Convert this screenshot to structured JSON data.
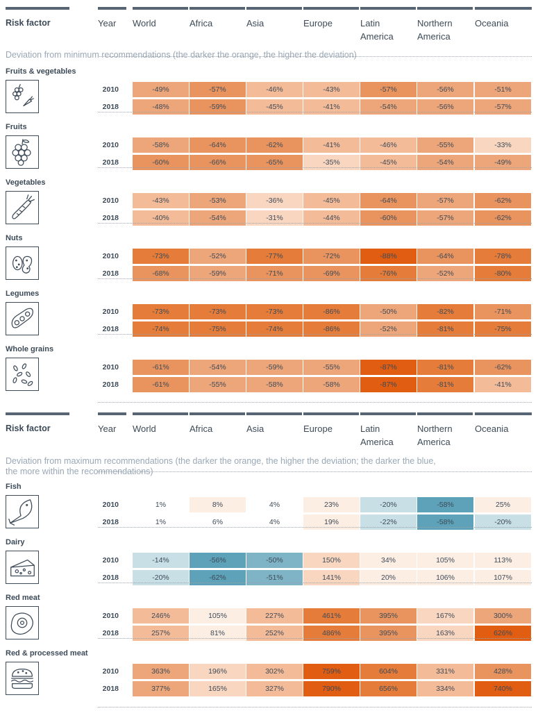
{
  "columns": [
    "World",
    "Africa",
    "Asia",
    "Europe",
    "Latin America",
    "Northern America",
    "Oceania"
  ],
  "headers": [
    {
      "risk_factor": "Risk factor",
      "year": "Year",
      "regions": [
        "World",
        "Africa",
        "Asia",
        "Europe",
        "Latin\nAmerica",
        "Northern\nAmerica",
        "Oceania"
      ]
    },
    {
      "risk_factor": "Risk factor",
      "year": "Year",
      "regions": [
        "World",
        "Africa",
        "Asia",
        "Europe",
        "Latin\nAmerica",
        "Northern\nAmerica",
        "Oceania"
      ]
    }
  ],
  "sections": [
    {
      "subtitle": "Deviation from minimum recommendations (the darker the orange, the higher the deviation)"
    },
    {
      "subtitle": "Deviation from maximum recommendations (the darker the orange, the higher the deviation; the darker the blue,\nthe more within the recommendations)"
    }
  ],
  "colors": {
    "o1": "#fdeee4",
    "o2": "#f9d6c0",
    "o3": "#f4bb98",
    "o4": "#eda57a",
    "o5": "#e9945f",
    "o6": "#e57c3a",
    "o7": "#e05d12",
    "b1": "#c8dfe6",
    "b2": "#7fb4c6",
    "b3": "#5da2b8",
    "text": "#3d4a57",
    "header_bar": "#566473"
  },
  "chart_data": {
    "type": "table",
    "years": [
      "2010",
      "2018"
    ],
    "groups": [
      {
        "section": 0,
        "label": "Fruits & vegetables",
        "icon": "fruits-vegetables-icon",
        "rows": [
          {
            "year": "2010",
            "values": [
              "-49%",
              "-57%",
              "-46%",
              "-43%",
              "-57%",
              "-56%",
              "-51%"
            ],
            "shades": [
              "o4",
              "o5",
              "o3",
              "o3",
              "o5",
              "o4",
              "o4"
            ]
          },
          {
            "year": "2018",
            "values": [
              "-48%",
              "-59%",
              "-45%",
              "-41%",
              "-54%",
              "-56%",
              "-57%"
            ],
            "shades": [
              "o4",
              "o5",
              "o3",
              "o3",
              "o4",
              "o4",
              "o4"
            ]
          }
        ]
      },
      {
        "section": 0,
        "label": "Fruits",
        "icon": "fruits-icon",
        "rows": [
          {
            "year": "2010",
            "values": [
              "-58%",
              "-64%",
              "-62%",
              "-41%",
              "-46%",
              "-55%",
              "-33%"
            ],
            "shades": [
              "o4",
              "o5",
              "o5",
              "o3",
              "o3",
              "o4",
              "o2"
            ]
          },
          {
            "year": "2018",
            "values": [
              "-60%",
              "-66%",
              "-65%",
              "-35%",
              "-45%",
              "-54%",
              "-49%"
            ],
            "shades": [
              "o5",
              "o5",
              "o5",
              "o2",
              "o3",
              "o4",
              "o4"
            ]
          }
        ]
      },
      {
        "section": 0,
        "label": "Vegetables",
        "icon": "carrot-icon",
        "rows": [
          {
            "year": "2010",
            "values": [
              "-43%",
              "-53%",
              "-36%",
              "-45%",
              "-64%",
              "-57%",
              "-62%"
            ],
            "shades": [
              "o3",
              "o4",
              "o2",
              "o3",
              "o5",
              "o4",
              "o5"
            ]
          },
          {
            "year": "2018",
            "values": [
              "-40%",
              "-54%",
              "-31%",
              "-44%",
              "-60%",
              "-57%",
              "-62%"
            ],
            "shades": [
              "o3",
              "o4",
              "o2",
              "o3",
              "o5",
              "o4",
              "o5"
            ]
          }
        ]
      },
      {
        "section": 0,
        "label": "Nuts",
        "icon": "nuts-icon",
        "rows": [
          {
            "year": "2010",
            "values": [
              "-73%",
              "-52%",
              "-77%",
              "-72%",
              "-88%",
              "-64%",
              "-78%"
            ],
            "shades": [
              "o6",
              "o4",
              "o6",
              "o5",
              "o7",
              "o5",
              "o6"
            ]
          },
          {
            "year": "2018",
            "values": [
              "-68%",
              "-59%",
              "-71%",
              "-69%",
              "-76%",
              "-52%",
              "-80%"
            ],
            "shades": [
              "o5",
              "o4",
              "o5",
              "o5",
              "o6",
              "o4",
              "o6"
            ]
          }
        ]
      },
      {
        "section": 0,
        "label": "Legumes",
        "icon": "legumes-icon",
        "rows": [
          {
            "year": "2010",
            "values": [
              "-73%",
              "-73%",
              "-73%",
              "-86%",
              "-50%",
              "-82%",
              "-71%"
            ],
            "shades": [
              "o6",
              "o6",
              "o6",
              "o6",
              "o4",
              "o6",
              "o5"
            ]
          },
          {
            "year": "2018",
            "values": [
              "-74%",
              "-75%",
              "-74%",
              "-86%",
              "-52%",
              "-81%",
              "-75%"
            ],
            "shades": [
              "o6",
              "o6",
              "o6",
              "o6",
              "o4",
              "o6",
              "o6"
            ]
          }
        ]
      },
      {
        "section": 0,
        "label": "Whole grains",
        "icon": "whole-grains-icon",
        "rows": [
          {
            "year": "2010",
            "values": [
              "-61%",
              "-54%",
              "-59%",
              "-55%",
              "-87%",
              "-81%",
              "-62%"
            ],
            "shades": [
              "o5",
              "o4",
              "o4",
              "o4",
              "o7",
              "o6",
              "o5"
            ]
          },
          {
            "year": "2018",
            "values": [
              "-61%",
              "-55%",
              "-58%",
              "-58%",
              "-87%",
              "-81%",
              "-41%"
            ],
            "shades": [
              "o5",
              "o4",
              "o4",
              "o4",
              "o7",
              "o6",
              "o3"
            ]
          }
        ]
      },
      {
        "section": 1,
        "label": "Fish",
        "icon": "fish-icon",
        "rows": [
          {
            "year": "2010",
            "values": [
              "1%",
              "8%",
              "4%",
              "23%",
              "-20%",
              "-58%",
              "25%"
            ],
            "shades": [
              "none",
              "o1",
              "none",
              "o1",
              "b1",
              "b3",
              "o1"
            ]
          },
          {
            "year": "2018",
            "values": [
              "1%",
              "6%",
              "4%",
              "19%",
              "-22%",
              "-58%",
              "-20%"
            ],
            "shades": [
              "none",
              "none",
              "none",
              "o1",
              "b1",
              "b3",
              "b1"
            ]
          }
        ]
      },
      {
        "section": 1,
        "label": "Dairy",
        "icon": "cheese-icon",
        "rows": [
          {
            "year": "2010",
            "values": [
              "-14%",
              "-56%",
              "-50%",
              "150%",
              "34%",
              "105%",
              "113%"
            ],
            "shades": [
              "b1",
              "b3",
              "b2",
              "o2",
              "o1",
              "o1",
              "o1"
            ]
          },
          {
            "year": "2018",
            "values": [
              "-20%",
              "-62%",
              "-51%",
              "141%",
              "20%",
              "106%",
              "107%"
            ],
            "shades": [
              "b1",
              "b3",
              "b2",
              "o2",
              "o1",
              "o1",
              "o1"
            ]
          }
        ]
      },
      {
        "section": 1,
        "label": "Red meat",
        "icon": "steak-icon",
        "rows": [
          {
            "year": "2010",
            "values": [
              "246%",
              "105%",
              "227%",
              "461%",
              "395%",
              "167%",
              "300%"
            ],
            "shades": [
              "o3",
              "o1",
              "o3",
              "o6",
              "o5",
              "o2",
              "o4"
            ]
          },
          {
            "year": "2018",
            "values": [
              "257%",
              "81%",
              "252%",
              "486%",
              "395%",
              "163%",
              "626%"
            ],
            "shades": [
              "o3",
              "o1",
              "o3",
              "o6",
              "o5",
              "o2",
              "o7"
            ]
          }
        ]
      },
      {
        "section": 1,
        "label": "Red & processed meat",
        "icon": "burger-icon",
        "rows": [
          {
            "year": "2010",
            "values": [
              "363%",
              "196%",
              "302%",
              "759%",
              "604%",
              "331%",
              "428%"
            ],
            "shades": [
              "o4",
              "o2",
              "o3",
              "o7",
              "o6",
              "o3",
              "o5"
            ]
          },
          {
            "year": "2018",
            "values": [
              "377%",
              "165%",
              "327%",
              "790%",
              "656%",
              "334%",
              "740%"
            ],
            "shades": [
              "o4",
              "o2",
              "o3",
              "o7",
              "o6",
              "o3",
              "o7"
            ]
          }
        ]
      }
    ]
  }
}
